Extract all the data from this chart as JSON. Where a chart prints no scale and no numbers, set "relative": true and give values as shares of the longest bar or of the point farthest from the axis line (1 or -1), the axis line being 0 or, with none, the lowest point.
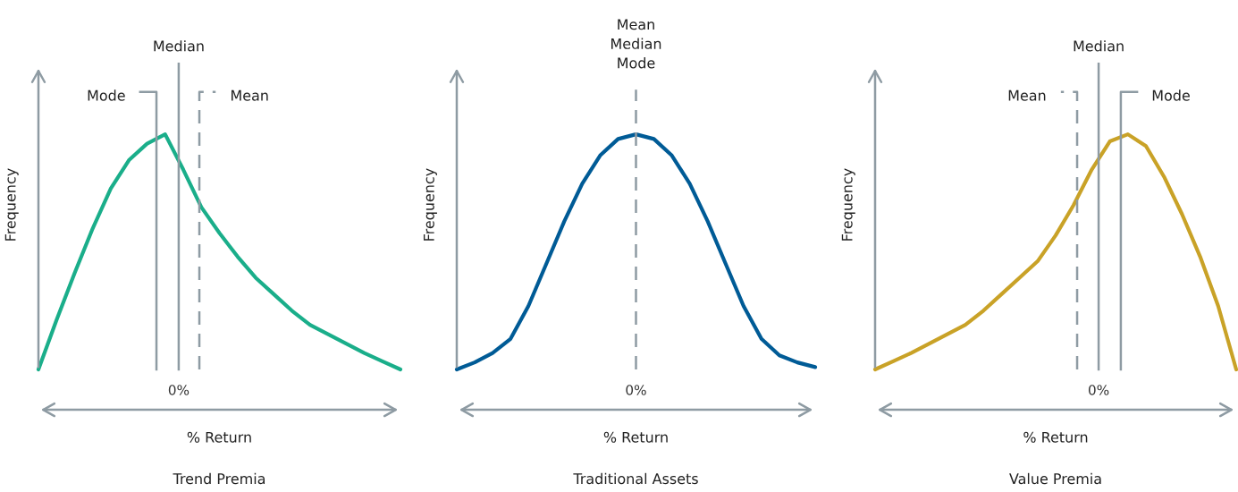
{
  "chart_data": [
    {
      "type": "line",
      "title": "Trend Premia",
      "xlabel": "% Return",
      "ylabel": "Frequency",
      "relative": true,
      "categories": [
        null,
        null,
        null,
        null,
        null,
        null,
        null,
        null,
        null,
        null,
        null,
        null,
        null,
        null,
        null,
        null,
        null,
        null,
        null,
        null,
        null
      ],
      "annotations": [
        "0%",
        "Mode",
        "Median",
        "Mean"
      ],
      "series": [
        {
          "color": "#1aae8a",
          "values": [
            0,
            0.21,
            0.41,
            0.6,
            0.77,
            0.89,
            0.96,
            1,
            0.85,
            0.69,
            0.58,
            0.48,
            0.39,
            0.32,
            0.25,
            0.19,
            0.15,
            0.11,
            0.07,
            0.035,
            0
          ]
        }
      ]
    },
    {
      "type": "line",
      "title": "Traditional Assets",
      "xlabel": "% Return",
      "ylabel": "Frequency",
      "relative": true,
      "categories": [
        null,
        null,
        null,
        null,
        null,
        null,
        null,
        null,
        null,
        null,
        null,
        null,
        null,
        null,
        null,
        null,
        null,
        null,
        null,
        null,
        null
      ],
      "annotations": [
        "0%",
        "Mean\nMedian\nMode"
      ],
      "series": [
        {
          "color": "#005b96",
          "values": [
            0,
            0.03,
            0.07,
            0.13,
            0.27,
            0.45,
            0.63,
            0.79,
            0.91,
            0.98,
            1,
            0.98,
            0.91,
            0.79,
            0.63,
            0.45,
            0.27,
            0.13,
            0.06,
            0.03,
            0.01
          ]
        }
      ]
    },
    {
      "type": "line",
      "title": "Value Premia",
      "xlabel": "% Return",
      "ylabel": "Frequency",
      "relative": true,
      "categories": [
        null,
        null,
        null,
        null,
        null,
        null,
        null,
        null,
        null,
        null,
        null,
        null,
        null,
        null,
        null,
        null,
        null,
        null,
        null,
        null,
        null
      ],
      "annotations": [
        "0%",
        "Mean",
        "Median",
        "Mode"
      ],
      "series": [
        {
          "color": "#c9a227",
          "values": [
            0,
            0.035,
            0.07,
            0.11,
            0.15,
            0.19,
            0.25,
            0.32,
            0.39,
            0.46,
            0.57,
            0.7,
            0.85,
            0.97,
            1,
            0.95,
            0.82,
            0.66,
            0.48,
            0.27,
            0
          ]
        }
      ]
    }
  ]
}
